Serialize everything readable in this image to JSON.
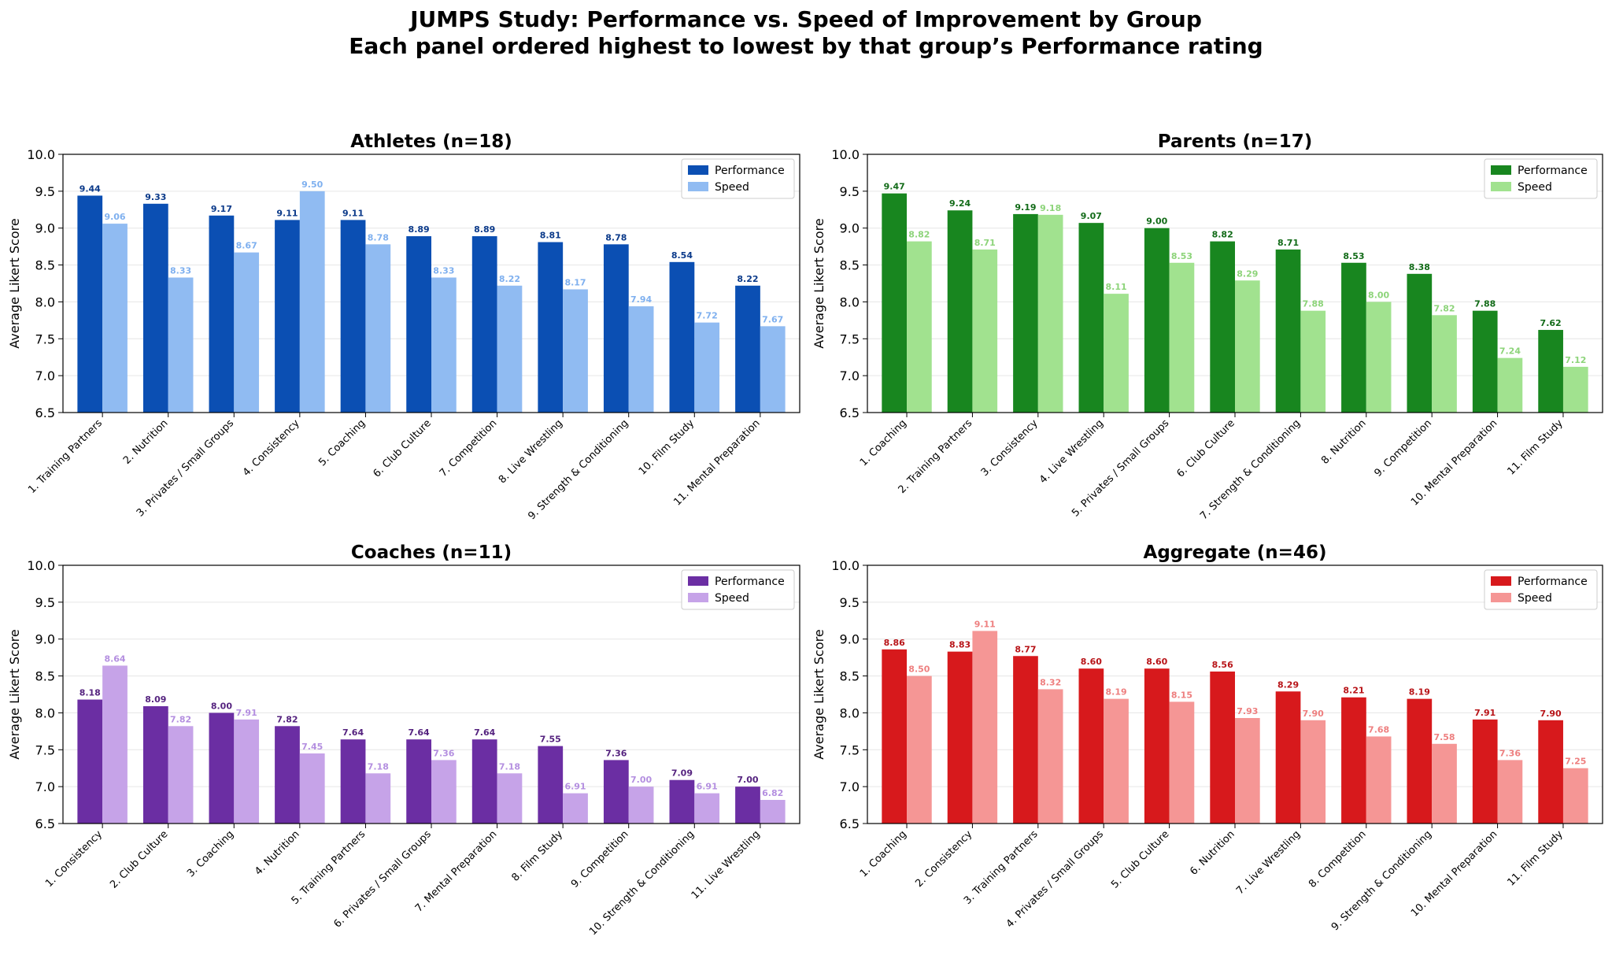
{
  "figure": {
    "title_line1": "JUMPS Study: Performance vs. Speed of Improvement by Group",
    "title_line2": "Each panel ordered highest to lowest by that group’s Performance rating"
  },
  "chart_data": [
    {
      "type": "bar",
      "title": "Athletes (n=18)",
      "xlabel": "",
      "ylabel": "Average Likert Score",
      "ylim": [
        6.5,
        10.0
      ],
      "yticks": [
        "6.5",
        "7.0",
        "7.5",
        "8.0",
        "8.5",
        "9.0",
        "9.5",
        "10.0"
      ],
      "grid": "y",
      "legend_position": "top-right",
      "categories": [
        "1. Training Partners",
        "2. Nutrition",
        "3. Privates / Small Groups",
        "4. Consistency",
        "5. Coaching",
        "6. Club Culture",
        "7. Competition",
        "8. Live Wrestling",
        "9. Strength & Conditioning",
        "10. Film Study",
        "11. Mental Preparation"
      ],
      "series": [
        {
          "name": "Performance",
          "color": "#0b4fb3",
          "label_color": "#0b3a8a",
          "values": [
            9.44,
            9.33,
            9.17,
            9.11,
            9.11,
            8.89,
            8.89,
            8.81,
            8.78,
            8.54,
            8.22
          ]
        },
        {
          "name": "Speed",
          "color": "#90bbf2",
          "label_color": "#7fb0ef",
          "values": [
            9.06,
            8.33,
            8.67,
            9.5,
            8.78,
            8.33,
            8.22,
            8.17,
            7.94,
            7.72,
            7.67
          ]
        }
      ]
    },
    {
      "type": "bar",
      "title": "Parents (n=17)",
      "xlabel": "",
      "ylabel": "Average Likert Score",
      "ylim": [
        6.5,
        10.0
      ],
      "yticks": [
        "6.5",
        "7.0",
        "7.5",
        "8.0",
        "8.5",
        "9.0",
        "9.5",
        "10.0"
      ],
      "grid": "y",
      "legend_position": "top-right",
      "categories": [
        "1. Coaching",
        "2. Training Partners",
        "3. Consistency",
        "4. Live Wrestling",
        "5. Privates / Small Groups",
        "6. Club Culture",
        "7. Strength & Conditioning",
        "8. Nutrition",
        "9. Competition",
        "10. Mental Preparation",
        "11. Film Study"
      ],
      "series": [
        {
          "name": "Performance",
          "color": "#18861f",
          "label_color": "#126b18",
          "values": [
            9.47,
            9.24,
            9.19,
            9.07,
            9.0,
            8.82,
            8.71,
            8.53,
            8.38,
            7.88,
            7.62
          ]
        },
        {
          "name": "Speed",
          "color": "#a1e28f",
          "label_color": "#8dd47a",
          "values": [
            8.82,
            8.71,
            9.18,
            8.11,
            8.53,
            8.29,
            7.88,
            8.0,
            7.82,
            7.24,
            7.12
          ]
        }
      ]
    },
    {
      "type": "bar",
      "title": "Coaches (n=11)",
      "xlabel": "",
      "ylabel": "Average Likert Score",
      "ylim": [
        6.5,
        10.0
      ],
      "yticks": [
        "6.5",
        "7.0",
        "7.5",
        "8.0",
        "8.5",
        "9.0",
        "9.5",
        "10.0"
      ],
      "grid": "y",
      "legend_position": "top-right",
      "categories": [
        "1. Consistency",
        "2. Club Culture",
        "3. Coaching",
        "4. Nutrition",
        "5. Training Partners",
        "6. Privates / Small Groups",
        "7. Mental Preparation",
        "8. Film Study",
        "9. Competition",
        "10. Strength & Conditioning",
        "11. Live Wrestling"
      ],
      "series": [
        {
          "name": "Performance",
          "color": "#6b2ea3",
          "label_color": "#55237f",
          "values": [
            8.18,
            8.09,
            8.0,
            7.82,
            7.64,
            7.64,
            7.64,
            7.55,
            7.36,
            7.09,
            7.0
          ]
        },
        {
          "name": "Speed",
          "color": "#c6a3e8",
          "label_color": "#b48fe0",
          "values": [
            8.64,
            7.82,
            7.91,
            7.45,
            7.18,
            7.36,
            7.18,
            6.91,
            7.0,
            6.91,
            6.82
          ]
        }
      ]
    },
    {
      "type": "bar",
      "title": "Aggregate (n=46)",
      "xlabel": "",
      "ylabel": "Average Likert Score",
      "ylim": [
        6.5,
        10.0
      ],
      "yticks": [
        "6.5",
        "7.0",
        "7.5",
        "8.0",
        "8.5",
        "9.0",
        "9.5",
        "10.0"
      ],
      "grid": "y",
      "legend_position": "top-right",
      "categories": [
        "1. Coaching",
        "2. Consistency",
        "3. Training Partners",
        "4. Privates / Small Groups",
        "5. Club Culture",
        "6. Nutrition",
        "7. Live Wrestling",
        "8. Competition",
        "9. Strength & Conditioning",
        "10. Mental Preparation",
        "11. Film Study"
      ],
      "series": [
        {
          "name": "Performance",
          "color": "#d7191c",
          "label_color": "#b81418",
          "values": [
            8.86,
            8.83,
            8.77,
            8.6,
            8.6,
            8.56,
            8.29,
            8.21,
            8.19,
            7.91,
            7.9
          ]
        },
        {
          "name": "Speed",
          "color": "#f59695",
          "label_color": "#ee7f7f",
          "values": [
            8.5,
            9.11,
            8.32,
            8.19,
            8.15,
            7.93,
            7.9,
            7.68,
            7.58,
            7.36,
            7.25
          ]
        }
      ]
    }
  ]
}
